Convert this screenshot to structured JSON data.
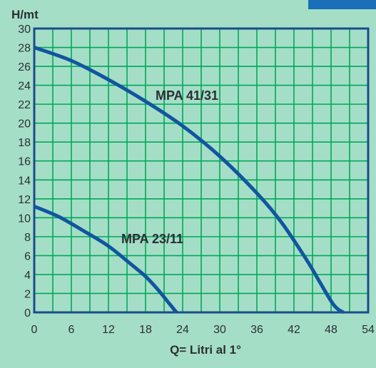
{
  "chart_data": {
    "type": "line",
    "ylabel": "H/mt",
    "xlabel": "Q= Litri al 1°",
    "xlim": [
      0,
      54
    ],
    "ylim": [
      0,
      30
    ],
    "x_ticks": [
      0,
      6,
      12,
      18,
      24,
      30,
      36,
      42,
      48,
      54
    ],
    "y_ticks": [
      0,
      2,
      4,
      6,
      8,
      10,
      12,
      14,
      16,
      18,
      20,
      22,
      24,
      26,
      28,
      30
    ],
    "grid": true,
    "series": [
      {
        "name": "MPA 41/31",
        "x": [
          0,
          6,
          12,
          18,
          24,
          30,
          36,
          40,
          44,
          46,
          48,
          49,
          50
        ],
        "y": [
          28,
          26.6,
          24.6,
          22.3,
          19.7,
          16.5,
          12.6,
          9.5,
          5.6,
          3.4,
          1.2,
          0.4,
          0
        ]
      },
      {
        "name": "MPA 23/11",
        "x": [
          0,
          4,
          8,
          12,
          16,
          18,
          20,
          22,
          23
        ],
        "y": [
          11.2,
          10.1,
          8.6,
          7.0,
          4.9,
          3.8,
          2.4,
          0.8,
          0
        ]
      }
    ]
  },
  "colors": {
    "panel": "#a5dec6",
    "plot_background": "#a5dec6",
    "grid": "#00a85b",
    "frame": "#1a4c8c",
    "curve": "#10569f",
    "corner_tab": "#1b6fb9"
  }
}
